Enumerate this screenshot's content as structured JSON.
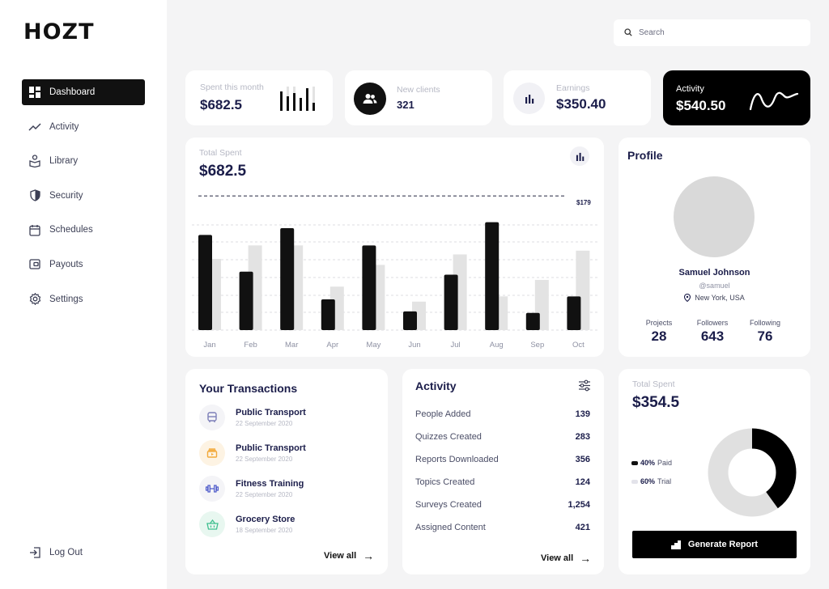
{
  "brand": {
    "logo": "HOZT"
  },
  "sidebar": {
    "items": [
      {
        "label": "Dashboard",
        "icon": "dashboard-icon",
        "active": true
      },
      {
        "label": "Activity",
        "icon": "activity-icon"
      },
      {
        "label": "Library",
        "icon": "library-icon"
      },
      {
        "label": "Security",
        "icon": "shield-icon"
      },
      {
        "label": "Schedules",
        "icon": "calendar-icon"
      },
      {
        "label": "Payouts",
        "icon": "wallet-icon"
      },
      {
        "label": "Settings",
        "icon": "gear-icon"
      }
    ],
    "logout": "Log Out"
  },
  "search": {
    "placeholder": "Search"
  },
  "stats": {
    "spent": {
      "label": "Spent this month",
      "value": "$682.5"
    },
    "clients": {
      "label": "New clients",
      "value": "321"
    },
    "earnings": {
      "label": "Earnings",
      "value": "$350.40"
    },
    "activity": {
      "label": "Activity",
      "value": "$540.50"
    }
  },
  "total_spent_chart": {
    "label": "Total Spent",
    "value": "$682.5",
    "marker": "$179"
  },
  "chart_data": {
    "type": "bar",
    "categories": [
      "Jan",
      "Feb",
      "Mar",
      "Apr",
      "May",
      "Jun",
      "Jul",
      "Aug",
      "Sep",
      "Oct"
    ],
    "series": [
      {
        "values": [
          127,
          78,
          136,
          41,
          113,
          25,
          74,
          144,
          23,
          45
        ],
        "color": "#111111"
      },
      {
        "values": [
          95,
          113,
          113,
          58,
          87,
          38,
          101,
          45,
          67,
          106
        ],
        "color": "#e3e3e3"
      }
    ],
    "marker_value": 179,
    "ylim": [
      0,
      190
    ],
    "grid": true
  },
  "profile": {
    "title": "Profile",
    "name": "Samuel Johnson",
    "handle": "@samuel",
    "location": "New York, USA",
    "stats": [
      {
        "label": "Projects",
        "value": "28"
      },
      {
        "label": "Followers",
        "value": "643"
      },
      {
        "label": "Following",
        "value": "76"
      }
    ]
  },
  "transactions": {
    "title": "Your Transactions",
    "items": [
      {
        "name": "Public Transport",
        "date": "22 September 2020",
        "icon": "bus-icon",
        "color": "#7d7fb8"
      },
      {
        "name": "Public Transport",
        "date": "22 September 2020",
        "icon": "ticket-icon",
        "color": "#f2a93b"
      },
      {
        "name": "Fitness Training",
        "date": "22 September 2020",
        "icon": "dumbbell-icon",
        "color": "#4a57c9"
      },
      {
        "name": "Grocery Store",
        "date": "18 September 2020",
        "icon": "basket-icon",
        "color": "#3fbf8f"
      }
    ],
    "view_all": "View all"
  },
  "activity_card": {
    "title": "Activity",
    "rows": [
      {
        "label": "People Added",
        "value": "139"
      },
      {
        "label": "Quizzes Created",
        "value": "283"
      },
      {
        "label": "Reports Downloaded",
        "value": "356"
      },
      {
        "label": "Topics Created",
        "value": "124"
      },
      {
        "label": "Surveys Created",
        "value": "1,254"
      },
      {
        "label": "Assigned Content",
        "value": "421"
      }
    ],
    "view_all": "View all"
  },
  "donut": {
    "label": "Total Spent",
    "value": "$354.5",
    "paid_pct": "40%",
    "paid_label": "Paid",
    "trial_pct": "60%",
    "trial_label": "Trial",
    "paid_fraction": 0.4,
    "button": "Generate Report"
  },
  "colors": {
    "dark": "#111111",
    "light_bar": "#e3e3e3",
    "navy": "#1b1d4a"
  }
}
